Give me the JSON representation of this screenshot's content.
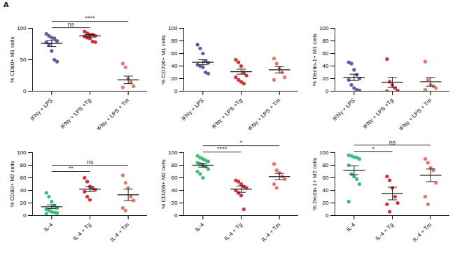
{
  "panel": "A",
  "chart_data": [
    {
      "type": "scatter",
      "ylabel": "% CD80+ M1 cells",
      "categories": [
        "IFNγ + LPS",
        "IFNγ + LPS +Tg",
        "IFNγ + LPS + Tm"
      ],
      "colors": [
        "#5b5ea6",
        "#d7303a",
        "#e8776f"
      ],
      "points": [
        [
          91,
          88,
          85,
          84,
          80,
          78,
          74,
          64,
          50,
          47
        ],
        [
          95,
          92,
          90,
          90,
          88,
          87,
          85,
          84,
          79,
          78
        ],
        [
          44,
          38,
          20,
          15,
          8,
          6
        ]
      ],
      "means": [
        76,
        88,
        18
      ],
      "sems": [
        5,
        2,
        6
      ],
      "ylim": [
        0,
        100
      ],
      "yticks": [
        0,
        50,
        100
      ],
      "annotations": [
        {
          "text": "ns",
          "between": [
            0,
            1
          ]
        },
        {
          "text": "****",
          "between": [
            0,
            2
          ]
        }
      ]
    },
    {
      "type": "scatter",
      "ylabel": "% CD206+ M1 cells",
      "categories": [
        "IFNγ + LPS",
        "IFNγ + LPS +Tg",
        "IFNγ + LPS + Tm"
      ],
      "colors": [
        "#5b5ea6",
        "#d7303a",
        "#e8776f"
      ],
      "points": [
        [
          74,
          68,
          60,
          48,
          45,
          42,
          40,
          38,
          30,
          28
        ],
        [
          50,
          46,
          40,
          30,
          25,
          22,
          18,
          15,
          12
        ],
        [
          52,
          44,
          36,
          30,
          22,
          18
        ]
      ],
      "means": [
        46,
        31,
        34
      ],
      "sems": [
        4,
        4,
        5
      ],
      "ylim": [
        0,
        100
      ],
      "yticks": [
        0,
        20,
        40,
        60,
        80,
        100
      ],
      "annotations": []
    },
    {
      "type": "scatter",
      "ylabel": "% Dectin-1+ M1 cells",
      "categories": [
        "IFNγ + LPS",
        "IFNγ + LPS +Tg",
        "IFNγ + LPS + Tm"
      ],
      "colors": [
        "#5b5ea6",
        "#d7303a",
        "#e8776f"
      ],
      "points": [
        [
          46,
          44,
          34,
          26,
          20,
          18,
          10,
          5,
          2,
          1
        ],
        [
          51,
          15,
          10,
          5,
          1,
          0
        ],
        [
          47,
          18,
          10,
          8,
          5,
          2
        ]
      ],
      "means": [
        22,
        14,
        15
      ],
      "sems": [
        5,
        8,
        7
      ],
      "ylim": [
        0,
        100
      ],
      "yticks": [
        0,
        20,
        40,
        60,
        80,
        100
      ],
      "annotations": []
    },
    {
      "type": "scatter",
      "ylabel": "% CD80+ M2 cells",
      "categories": [
        "IL-4",
        "IL-4 + Tg",
        "IL-4 + Tm"
      ],
      "colors": [
        "#3dbb7a",
        "#d7303a",
        "#e8776f"
      ],
      "points": [
        [
          36,
          30,
          22,
          16,
          12,
          10,
          8,
          6,
          5,
          4,
          3
        ],
        [
          60,
          54,
          46,
          43,
          41,
          38,
          30,
          25
        ],
        [
          64,
          52,
          44,
          30,
          24,
          12,
          8
        ]
      ],
      "means": [
        14,
        42,
        33
      ],
      "sems": [
        3,
        4,
        9
      ],
      "ylim": [
        0,
        100
      ],
      "yticks": [
        0,
        20,
        40,
        60,
        80,
        100
      ],
      "annotations": [
        {
          "text": "**",
          "between": [
            0,
            1
          ]
        },
        {
          "text": "ns",
          "between": [
            0,
            2
          ]
        }
      ]
    },
    {
      "type": "scatter",
      "ylabel": "% CD206+ M2 cells",
      "categories": [
        "IL-4",
        "IL-4 + Tg",
        "IL-4 + Tm"
      ],
      "colors": [
        "#3dbb7a",
        "#d7303a",
        "#e8776f"
      ],
      "points": [
        [
          95,
          92,
          90,
          88,
          86,
          84,
          82,
          80,
          78,
          74,
          70,
          66,
          60
        ],
        [
          56,
          54,
          50,
          46,
          44,
          40,
          36,
          32,
          10
        ],
        [
          82,
          72,
          68,
          62,
          58,
          50,
          44
        ]
      ],
      "means": [
        80,
        42,
        62
      ],
      "sems": [
        3,
        5,
        5
      ],
      "ylim": [
        0,
        100
      ],
      "yticks": [
        0,
        20,
        40,
        60,
        80,
        100
      ],
      "annotations": [
        {
          "text": "****",
          "between": [
            0,
            1
          ]
        },
        {
          "text": "*",
          "between": [
            0,
            2
          ]
        }
      ]
    },
    {
      "type": "scatter",
      "ylabel": "% Dectin-1+ M2 cells",
      "categories": [
        "IL-4",
        "IL-4 + Tg",
        "IL-4 + Tm"
      ],
      "colors": [
        "#3dbb7a",
        "#d7303a",
        "#e8776f"
      ],
      "points": [
        [
          96,
          95,
          93,
          92,
          90,
          80,
          66,
          62,
          58,
          50,
          22
        ],
        [
          62,
          56,
          44,
          30,
          20,
          18,
          6
        ],
        [
          90,
          84,
          76,
          72,
          52,
          30,
          18
        ]
      ],
      "means": [
        72,
        35,
        64
      ],
      "sems": [
        7,
        10,
        10
      ],
      "ylim": [
        0,
        100
      ],
      "yticks": [
        0,
        20,
        40,
        60,
        80,
        100
      ],
      "annotations": [
        {
          "text": "*",
          "between": [
            0,
            1
          ]
        },
        {
          "text": "ns",
          "between": [
            0,
            2
          ]
        }
      ]
    }
  ]
}
